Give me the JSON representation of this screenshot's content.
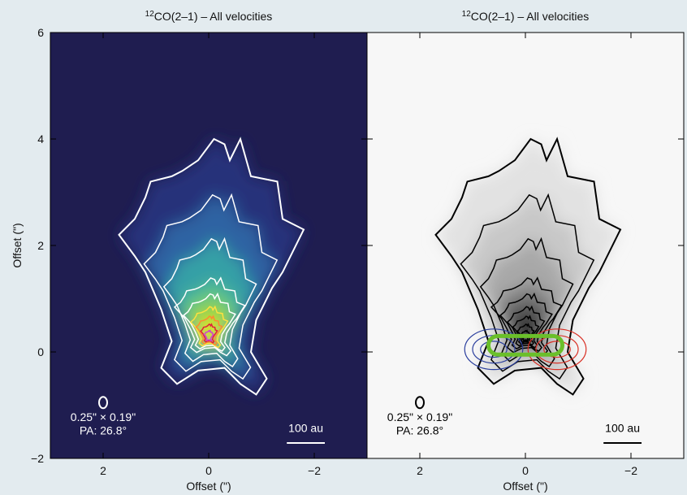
{
  "chart_data": [
    {
      "type": "image",
      "title_sup": "12",
      "title": "CO(2–1) – All velocities",
      "xlabel": "Offset (\")",
      "ylabel": "Offset (\")",
      "xlim": [
        3,
        -3
      ],
      "ylim": [
        -2,
        6
      ],
      "xticks": [
        2,
        0,
        {
          "value": -2,
          "label": "−2"
        }
      ],
      "yticks": [
        {
          "value": -2,
          "label": "−2"
        },
        0,
        2,
        4,
        6
      ],
      "ytick_labels": true,
      "colormap": [
        "#26307a",
        "#2d64a3",
        "#36a0a6",
        "#5bc38a",
        "#96d444",
        "#e6e21e"
      ],
      "background": "#1f1d50",
      "contour_color": "#ffffff",
      "core_colors": [
        "#ffe040",
        "#ff8a30",
        "#e0203a",
        "#d040d0"
      ],
      "beam": "0.25\" × 0.19\"",
      "pa": "PA: 26.8°",
      "scalebar": "100 au"
    },
    {
      "type": "image",
      "title_sup": "12",
      "title": "CO(2–1) – All velocities",
      "xlabel": "Offset (\")",
      "xlim": [
        3,
        -3
      ],
      "ylim": [
        -2,
        6
      ],
      "xticks": [
        2,
        0,
        {
          "value": -2,
          "label": "−2"
        }
      ],
      "yticks": [
        -2,
        0,
        2,
        4,
        6
      ],
      "ytick_labels": false,
      "colormap": [
        "#e2e2e2",
        "#c8c8c8",
        "#a8a8a8",
        "#808080",
        "#555555",
        "#262626"
      ],
      "background": "#f7f7f7",
      "contour_color": "#000000",
      "outflow_colors": [
        "#2b3f9e",
        "#d93025"
      ],
      "marker_color": "#6abf2a",
      "beam": "0.25\" × 0.19\"",
      "pa": "PA: 26.8°",
      "scalebar": "100 au"
    }
  ]
}
